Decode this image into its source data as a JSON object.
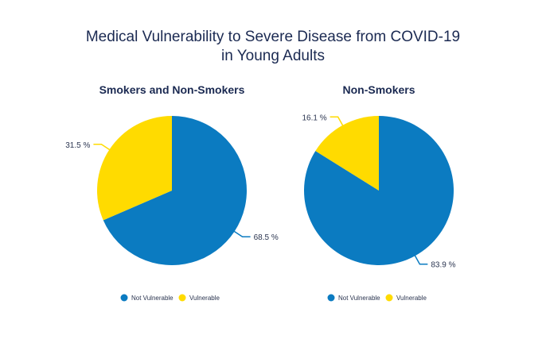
{
  "chart_data": [
    {
      "type": "pie",
      "title": "Medical Vulnerability to Severe Disease from COVID-19 in Young Adults",
      "title_lines": [
        "Medical Vulnerability to Severe Disease from COVID-19",
        "in Young Adults"
      ],
      "subtitle": "Smokers and Non-Smokers",
      "slices": [
        {
          "label": "Not Vulnerable",
          "value": 68.5,
          "display": "68.5 %",
          "color": "#0b7bc1"
        },
        {
          "label": "Vulnerable",
          "value": 31.5,
          "display": "31.5 %",
          "color": "#ffdb00"
        }
      ],
      "legend": "bottom"
    },
    {
      "type": "pie",
      "subtitle": "Non-Smokers",
      "slices": [
        {
          "label": "Not Vulnerable",
          "value": 83.9,
          "display": "83.9 %",
          "color": "#0b7bc1"
        },
        {
          "label": "Vulnerable",
          "value": 16.1,
          "display": "16.1 %",
          "color": "#ffdb00"
        }
      ],
      "legend": "bottom"
    }
  ],
  "colors": {
    "title": "#1b2a52",
    "label": "#2b3550"
  }
}
